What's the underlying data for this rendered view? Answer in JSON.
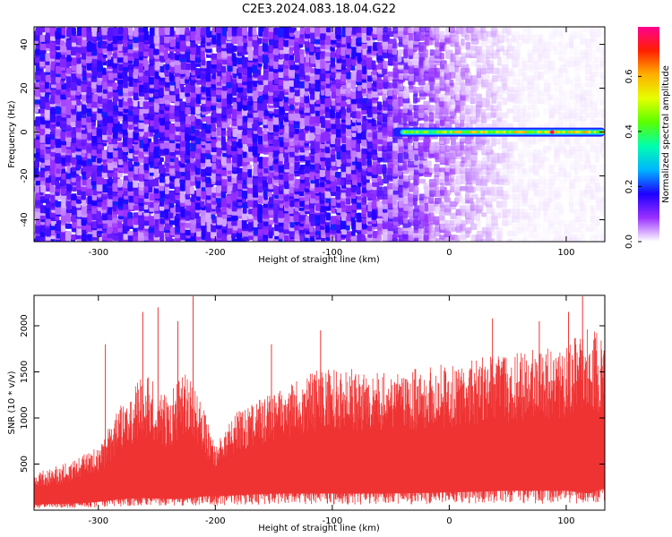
{
  "title": "C2E3.2024.083.18.04.G22",
  "chart_data": [
    {
      "type": "heatmap",
      "title": "C2E3.2024.083.18.04.G22",
      "xlabel": "Height of straight line (km)",
      "ylabel": "Frequency (Hz)",
      "xlim": [
        -355,
        133
      ],
      "ylim": [
        -50,
        48
      ],
      "xticks": [
        -300,
        -200,
        -100,
        0,
        100
      ],
      "yticks": [
        -40,
        -20,
        0,
        20,
        40
      ],
      "colorbar": {
        "label": "Normalized spectral amplitude",
        "range": [
          0.0,
          0.78
        ],
        "ticks": [
          0.0,
          0.2,
          0.4,
          0.6
        ],
        "colormap": [
          "#ffffff",
          "#9b30ff",
          "#1e00ff",
          "#00b4ff",
          "#00ffb0",
          "#5aff00",
          "#e6ff00",
          "#ffb000",
          "#ff2000",
          "#ff0090"
        ]
      },
      "features": {
        "noise_background": "purple noise across full frequency range, fading toward lighter lavender and white for heights above -80 km",
        "tone_line": {
          "frequency_hz": 0,
          "x_start_km": -48,
          "x_end_km": 133,
          "peak_x_km": 88,
          "peak_amplitude": 0.75
        }
      },
      "grid": false
    },
    {
      "type": "area",
      "xlabel": "Height of straight line (km)",
      "ylabel": "SNR (10 * v/v)",
      "xlim": [
        -355,
        133
      ],
      "ylim": [
        0,
        2330
      ],
      "xticks": [
        -300,
        -200,
        -100,
        0,
        100
      ],
      "yticks": [
        500,
        1000,
        1500,
        2000
      ],
      "color": "#ef3333",
      "envelope_km": [
        -355,
        -320,
        -300,
        -280,
        -260,
        -240,
        -230,
        -220,
        -210,
        -200,
        -180,
        -150,
        -120,
        -100,
        -50,
        0,
        50,
        100,
        120,
        133
      ],
      "envelope_upper": [
        400,
        550,
        700,
        1200,
        1500,
        1200,
        1500,
        1450,
        1100,
        700,
        1100,
        1300,
        1500,
        1550,
        1500,
        1600,
        1700,
        1800,
        2000,
        1850
      ],
      "envelope_lower": [
        100,
        120,
        150,
        200,
        220,
        200,
        200,
        220,
        250,
        250,
        270,
        300,
        300,
        300,
        300,
        320,
        350,
        350,
        300,
        400
      ],
      "spikes": [
        {
          "x": -294,
          "y": 1800
        },
        {
          "x": -262,
          "y": 2150
        },
        {
          "x": -249,
          "y": 2200
        },
        {
          "x": -232,
          "y": 2050
        },
        {
          "x": -219,
          "y": 2320
        },
        {
          "x": -152,
          "y": 1800
        },
        {
          "x": -110,
          "y": 1950
        },
        {
          "x": 37,
          "y": 2080
        },
        {
          "x": 77,
          "y": 2050
        },
        {
          "x": 102,
          "y": 2150
        },
        {
          "x": 114,
          "y": 2320
        }
      ],
      "grid": false
    }
  ]
}
